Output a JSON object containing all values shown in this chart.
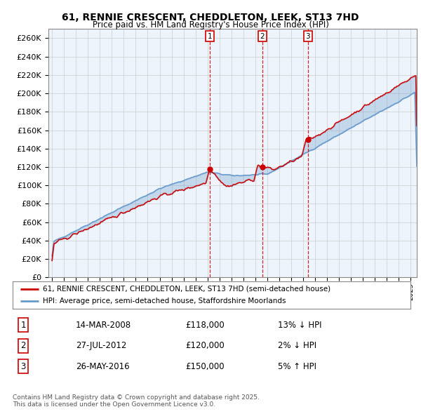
{
  "title": "61, RENNIE CRESCENT, CHEDDLETON, LEEK, ST13 7HD",
  "subtitle": "Price paid vs. HM Land Registry's House Price Index (HPI)",
  "ylim": [
    0,
    270000
  ],
  "yticks": [
    0,
    20000,
    40000,
    60000,
    80000,
    100000,
    120000,
    140000,
    160000,
    180000,
    200000,
    220000,
    240000,
    260000
  ],
  "xlim_start": 1994.7,
  "xlim_end": 2025.5,
  "sale_dates": [
    2008.2,
    2012.58,
    2016.4
  ],
  "sale_prices": [
    118000,
    120000,
    150000
  ],
  "sale_labels": [
    "1",
    "2",
    "3"
  ],
  "vline_color": "#cc0000",
  "hpi_line_color": "#6699cc",
  "price_line_color": "#cc0000",
  "fill_color": "#ddeeff",
  "chart_bg_color": "#eef4fb",
  "legend_label_price": "61, RENNIE CRESCENT, CHEDDLETON, LEEK, ST13 7HD (semi-detached house)",
  "legend_label_hpi": "HPI: Average price, semi-detached house, Staffordshire Moorlands",
  "table_entries": [
    {
      "num": "1",
      "date": "14-MAR-2008",
      "price": "£118,000",
      "change": "13% ↓ HPI"
    },
    {
      "num": "2",
      "date": "27-JUL-2012",
      "price": "£120,000",
      "change": "2% ↓ HPI"
    },
    {
      "num": "3",
      "date": "26-MAY-2016",
      "price": "£150,000",
      "change": "5% ↑ HPI"
    }
  ],
  "footer": "Contains HM Land Registry data © Crown copyright and database right 2025.\nThis data is licensed under the Open Government Licence v3.0.",
  "background_color": "#ffffff",
  "grid_color": "#cccccc"
}
